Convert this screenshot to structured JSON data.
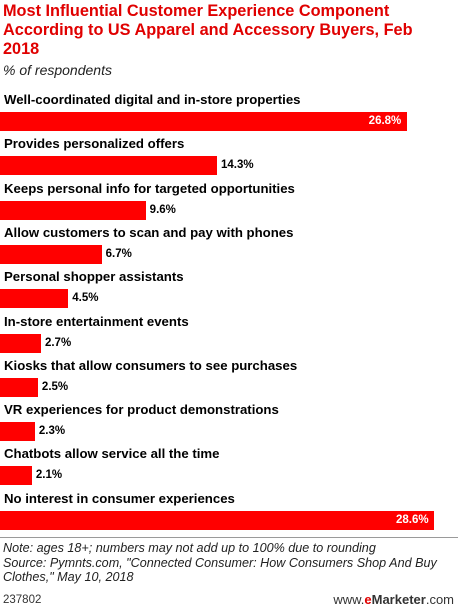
{
  "chart_data": {
    "type": "bar",
    "orientation": "horizontal",
    "title": "Most Influential Customer Experience Component According to US Apparel and Accessory Buyers, Feb 2018",
    "subtitle": "% of respondents",
    "categories": [
      "Well-coordinated digital and in-store properties",
      "Provides personalized offers",
      "Keeps personal info for targeted opportunities",
      "Allow customers to scan and pay with phones",
      "Personal shopper assistants",
      "In-store entertainment events",
      "Kiosks that allow consumers to see purchases",
      "VR experiences for product demonstrations",
      "Chatbots allow service all the time",
      "No interest in consumer experiences"
    ],
    "values": [
      26.8,
      14.3,
      9.6,
      6.7,
      4.5,
      2.7,
      2.5,
      2.3,
      2.1,
      28.6
    ],
    "value_labels": [
      "26.8%",
      "14.3%",
      "9.6%",
      "6.7%",
      "4.5%",
      "2.7%",
      "2.5%",
      "2.3%",
      "2.1%",
      "28.6%"
    ],
    "xlim": [
      0,
      28.6
    ],
    "grid": false,
    "legend": "none",
    "bar_color": "#ff0000",
    "title_color": "#e00000"
  },
  "footer": {
    "note": "Note: ages 18+; numbers may not add up to 100% due to rounding",
    "source": "Source: Pymnts.com, \"Connected Consumer: How Consumers Shop And Buy Clothes,\" May 10, 2018",
    "chart_id": "237802",
    "brand_prefix": "www.",
    "brand_e": "e",
    "brand_main": "Marketer",
    "brand_suffix": ".com"
  }
}
